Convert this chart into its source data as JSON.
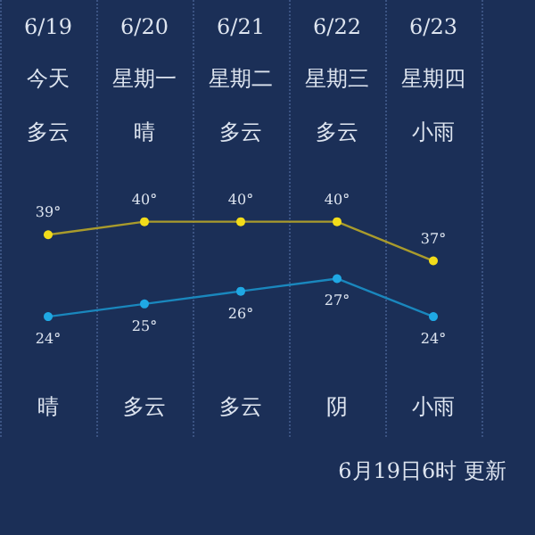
{
  "chart_data": {
    "type": "line",
    "categories": [
      "6/19",
      "6/20",
      "6/21",
      "6/22",
      "6/23"
    ],
    "series": [
      {
        "color": "#f2dc1a",
        "values": [
          39,
          40,
          40,
          40,
          37
        ],
        "value_labels": [
          "39°",
          "40°",
          "40°",
          "40°",
          "37°"
        ]
      },
      {
        "color": "#1fa8e4",
        "axis": "y2",
        "values": [
          24,
          25,
          26,
          27,
          24
        ],
        "value_labels": [
          "24°",
          "25°",
          "26°",
          "27°",
          "24°"
        ]
      }
    ],
    "ylim": [
      23.5,
      57
    ],
    "y2lim": [
      14.5,
      49
    ],
    "tick_labels": "x",
    "grid": "x",
    "marker": "circle",
    "line_style": "solid",
    "annotations": [
      "今天",
      "星期一",
      "星期二",
      "星期三",
      "星期四",
      "多云",
      "晴",
      "多云",
      "多云",
      "小雨",
      "晴",
      "多云",
      "多云",
      "阴",
      "小雨",
      "6月19日6时 更新"
    ]
  }
}
